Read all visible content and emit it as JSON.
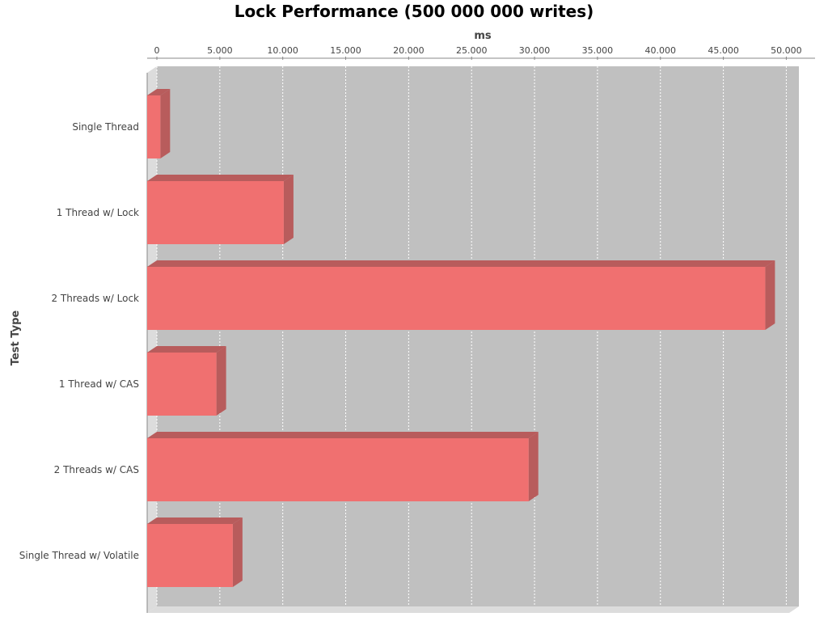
{
  "chart_data": {
    "type": "bar",
    "orientation": "horizontal",
    "title": "Lock Performance (500 000 000 writes)",
    "xlabel": "ms",
    "ylabel": "Test Type",
    "xlim": [
      0,
      51000
    ],
    "x_axis_position": "top",
    "x_ticks": [
      0,
      5000,
      10000,
      15000,
      20000,
      25000,
      30000,
      35000,
      40000,
      45000,
      50000
    ],
    "x_tick_labels": [
      "0",
      "5.000",
      "10.000",
      "15.000",
      "20.000",
      "25.000",
      "30.000",
      "35.000",
      "40.000",
      "45.000",
      "50.000"
    ],
    "categories": [
      "Single Thread",
      "1 Thread w/ Lock",
      "2 Threads w/ Lock",
      "1 Thread w/ CAS",
      "2 Threads w/ CAS",
      "Single Thread w/ Volatile"
    ],
    "values": [
      1050,
      10850,
      49100,
      5500,
      30300,
      6800
    ],
    "grid": true,
    "legend": "none",
    "render_3d": true
  },
  "colors": {
    "bar_front": "#f07070",
    "bar_side": "#b85c5c",
    "bar_top": "#b85c5c",
    "plot_background": "#c0c0c0",
    "wall": "#dcdcdc",
    "gridline": "#ffffff"
  }
}
